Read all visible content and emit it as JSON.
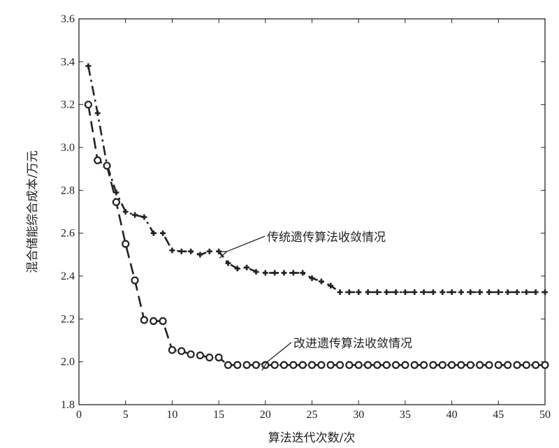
{
  "chart_data": {
    "type": "line",
    "title": "",
    "xlabel": "算法迭代次数/次",
    "ylabel": "混合储能综合成本/万元",
    "xlim": [
      0,
      50
    ],
    "ylim": [
      1.8,
      3.6
    ],
    "xticks": [
      "0",
      "5",
      "10",
      "15",
      "20",
      "25",
      "30",
      "35",
      "40",
      "45",
      "50"
    ],
    "yticks": [
      "1.8",
      "2.0",
      "2.2",
      "2.4",
      "2.6",
      "2.8",
      "3.0",
      "3.2",
      "3.4",
      "3.6"
    ],
    "x": [
      1,
      2,
      3,
      4,
      5,
      6,
      7,
      8,
      9,
      10,
      11,
      12,
      13,
      14,
      15,
      16,
      17,
      18,
      19,
      20,
      21,
      22,
      23,
      24,
      25,
      26,
      27,
      28,
      29,
      30,
      31,
      32,
      33,
      34,
      35,
      36,
      37,
      38,
      39,
      40,
      41,
      42,
      43,
      44,
      45,
      46,
      47,
      48,
      49,
      50
    ],
    "series": [
      {
        "name": "传统遗传算法收敛情况",
        "marker": "plus",
        "line": "dashdot",
        "values": [
          3.38,
          3.16,
          2.92,
          2.79,
          2.7,
          2.685,
          2.675,
          2.6,
          2.6,
          2.52,
          2.515,
          2.515,
          2.5,
          2.515,
          2.515,
          2.46,
          2.435,
          2.44,
          2.42,
          2.415,
          2.415,
          2.415,
          2.415,
          2.415,
          2.39,
          2.375,
          2.355,
          2.325,
          2.325,
          2.325,
          2.325,
          2.325,
          2.325,
          2.325,
          2.325,
          2.325,
          2.325,
          2.325,
          2.325,
          2.325,
          2.325,
          2.325,
          2.325,
          2.325,
          2.325,
          2.325,
          2.325,
          2.325,
          2.325,
          2.325
        ]
      },
      {
        "name": "改进遗传算法收敛情况",
        "marker": "circle",
        "line": "dashed",
        "values": [
          3.2,
          2.94,
          2.915,
          2.745,
          2.55,
          2.38,
          2.195,
          2.19,
          2.19,
          2.055,
          2.05,
          2.035,
          2.03,
          2.02,
          2.02,
          1.985,
          1.985,
          1.985,
          1.985,
          1.985,
          1.985,
          1.985,
          1.985,
          1.985,
          1.985,
          1.985,
          1.985,
          1.985,
          1.985,
          1.985,
          1.985,
          1.985,
          1.985,
          1.985,
          1.985,
          1.985,
          1.985,
          1.985,
          1.985,
          1.985,
          1.985,
          1.985,
          1.985,
          1.985,
          1.985,
          1.985,
          1.985,
          1.985,
          1.985,
          1.985
        ]
      }
    ],
    "annotations": [
      {
        "text": "传统遗传算法收敛情况",
        "x": 15.5,
        "y": 2.52
      },
      {
        "text": "改进遗传算法收敛情况",
        "x": 20,
        "y": 1.985
      }
    ],
    "grid": false,
    "legend": "none"
  }
}
